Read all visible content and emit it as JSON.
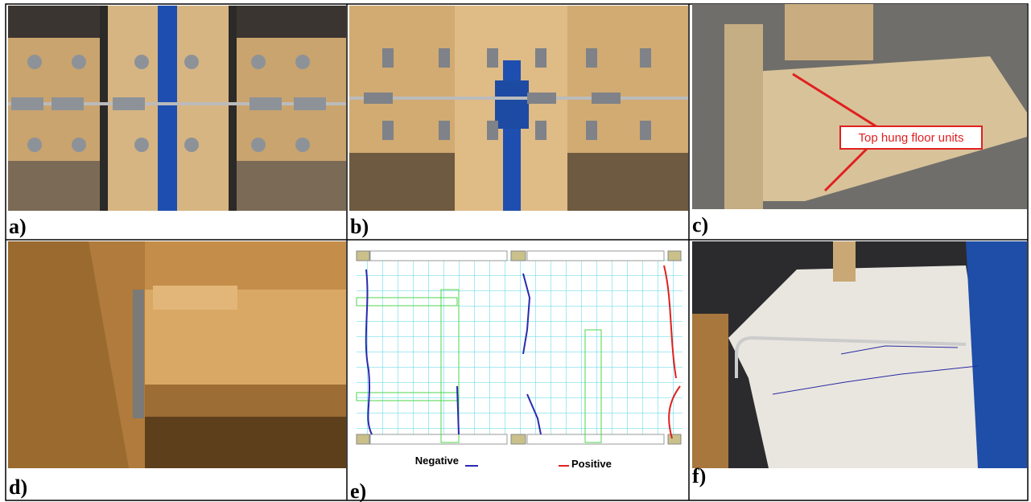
{
  "panels": [
    {
      "label": "a)"
    },
    {
      "label": "b)"
    },
    {
      "label": "c)",
      "callout": "Top hung floor units"
    },
    {
      "label": "d)"
    },
    {
      "label": "e)",
      "legend": [
        "Negative",
        "Positive"
      ]
    },
    {
      "label": "f)"
    }
  ]
}
